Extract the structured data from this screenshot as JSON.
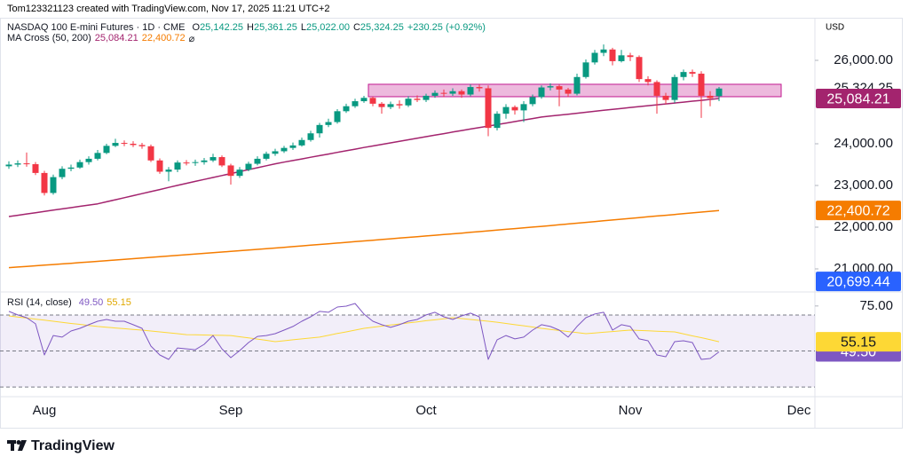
{
  "header": {
    "attribution": "Tom123321123 created with TradingView.com, Nov 17, 2025 11:21 UTC+2"
  },
  "chart_data": [
    {
      "type": "candlestick",
      "title": "NASDAQ 100 E-mini Futures · 1D · CME",
      "ohlc": [
        {
          "key": "O",
          "text": "25,142.25"
        },
        {
          "key": "H",
          "text": "25,361.25"
        },
        {
          "key": "L",
          "text": "25,022.00"
        },
        {
          "key": "C",
          "text": "25,324.25"
        }
      ],
      "change": "+230.25 (+0.92%)",
      "currency": "USD",
      "categories": [
        null,
        null,
        null,
        null,
        "Aug",
        null,
        null,
        null,
        null,
        null,
        null,
        null,
        null,
        null,
        null,
        null,
        null,
        null,
        null,
        null,
        null,
        null,
        null,
        null,
        null,
        "Sep",
        null,
        null,
        null,
        null,
        null,
        null,
        null,
        null,
        null,
        null,
        null,
        null,
        null,
        null,
        null,
        null,
        null,
        null,
        null,
        null,
        null,
        "Oct",
        null,
        null,
        null,
        null,
        null,
        null,
        null,
        null,
        null,
        null,
        null,
        null,
        null,
        null,
        null,
        null,
        null,
        null,
        null,
        null,
        null,
        null,
        "Nov",
        null,
        null,
        null,
        null,
        null,
        null,
        null,
        null,
        null,
        null,
        null,
        null,
        null,
        null,
        null,
        null,
        null,
        null,
        "Dec"
      ],
      "open": [
        23460,
        23500,
        23530,
        23510,
        23300,
        22820,
        23200,
        23400,
        23430,
        23560,
        23640,
        23780,
        23950,
        24020,
        24000,
        23970,
        23940,
        23600,
        23330,
        23380,
        23550,
        23540,
        23560,
        23600,
        23680,
        23480,
        23230,
        23380,
        23520,
        23640,
        23760,
        23820,
        23900,
        23960,
        24090,
        24250,
        24450,
        24520,
        24780,
        24900,
        25020,
        25100,
        24960,
        24880,
        24950,
        24920,
        25080,
        25050,
        25150,
        25220,
        25200,
        25260,
        25180,
        25360,
        25330,
        24380,
        24720,
        24880,
        24800,
        24950,
        25120,
        25350,
        25380,
        25300,
        25200,
        25600,
        25950,
        26180,
        26260,
        25980,
        26120,
        26080,
        25550,
        25480,
        25150,
        25050,
        25600,
        25720,
        25680,
        25150,
        25142.25,
        null,
        null,
        null,
        null,
        null,
        null,
        null,
        null,
        null
      ],
      "high": [
        23580,
        23600,
        23790,
        23560,
        23350,
        23260,
        23460,
        23500,
        23620,
        23700,
        23850,
        24000,
        24120,
        24080,
        24060,
        24020,
        23980,
        23650,
        23440,
        23600,
        23610,
        23620,
        23660,
        23760,
        23720,
        23520,
        23440,
        23570,
        23700,
        23810,
        23880,
        23950,
        24030,
        24150,
        24310,
        24500,
        24600,
        24830,
        24960,
        25080,
        25150,
        25130,
        25000,
        25010,
        25040,
        25140,
        25160,
        25200,
        25280,
        25300,
        25330,
        25300,
        25420,
        25420,
        25400,
        24780,
        24950,
        24920,
        25020,
        25180,
        25400,
        25450,
        25420,
        25340,
        25680,
        26020,
        26250,
        26380,
        26300,
        26250,
        26180,
        26120,
        25620,
        25520,
        25220,
        25660,
        25780,
        25780,
        25740,
        25260,
        25361.25,
        null,
        null,
        null,
        null,
        null,
        null,
        null,
        null,
        null
      ],
      "low": [
        23400,
        23440,
        23450,
        23250,
        22760,
        22780,
        23150,
        23340,
        23400,
        23500,
        23600,
        23750,
        23920,
        23940,
        23920,
        23880,
        23560,
        23280,
        23100,
        23320,
        23480,
        23470,
        23500,
        23560,
        23440,
        23020,
        23180,
        23340,
        23480,
        23600,
        23710,
        23780,
        23850,
        23930,
        24050,
        24150,
        24400,
        24480,
        24740,
        24860,
        24980,
        24900,
        24720,
        24830,
        24840,
        24880,
        25000,
        25000,
        25100,
        25120,
        25150,
        25100,
        25140,
        25250,
        24180,
        24320,
        24600,
        24700,
        24520,
        24900,
        25080,
        25280,
        24900,
        25120,
        25160,
        25560,
        25900,
        26100,
        25880,
        25950,
        25980,
        25480,
        25400,
        24720,
        24950,
        24980,
        25520,
        25600,
        24620,
        24900,
        25022,
        null,
        null,
        null,
        null,
        null,
        null,
        null,
        null,
        null
      ],
      "close": [
        23500,
        23530,
        23510,
        23300,
        22820,
        23200,
        23400,
        23430,
        23560,
        23640,
        23780,
        23950,
        24020,
        24000,
        23970,
        23940,
        23600,
        23330,
        23380,
        23550,
        23540,
        23560,
        23600,
        23680,
        23480,
        23230,
        23380,
        23520,
        23640,
        23760,
        23820,
        23900,
        23960,
        24090,
        24250,
        24450,
        24520,
        24780,
        24900,
        25020,
        25100,
        24960,
        24880,
        24950,
        24920,
        25080,
        25050,
        25150,
        25220,
        25200,
        25260,
        25180,
        25360,
        25330,
        24380,
        24720,
        24880,
        24800,
        24950,
        25120,
        25350,
        25380,
        25300,
        25200,
        25600,
        25950,
        26180,
        26260,
        25980,
        26120,
        26080,
        25550,
        25480,
        25150,
        25050,
        25600,
        25720,
        25680,
        25150,
        25094,
        25324.25,
        null,
        null,
        null,
        null,
        null,
        null,
        null,
        null,
        null
      ],
      "up_color": "#089981",
      "down_color": "#f23645",
      "overlay": {
        "name": "MA Cross (50, 200)",
        "series": [
          {
            "color": "#a3246e",
            "value_label": "25,084.21",
            "values": [
              22255,
              22286,
              22316,
              22347,
              22377,
              22408,
              22438,
              22469,
              22499,
              22530,
              22560,
              22609,
              22658,
              22707,
              22756,
              22805,
              22854,
              22903,
              22952,
              23001,
              23050,
              23097,
              23144,
              23191,
              23238,
              23285,
              23332,
              23379,
              23426,
              23473,
              23520,
              23559,
              23598,
              23637,
              23676,
              23715,
              23754,
              23793,
              23832,
              23871,
              23910,
              23947,
              23984,
              24021,
              24058,
              24095,
              24132,
              24169,
              24206,
              24243,
              24280,
              24316,
              24352,
              24388,
              24424,
              24460,
              24496,
              24532,
              24568,
              24604,
              24640,
              24663,
              24686,
              24709,
              24732,
              24755,
              24778,
              24801,
              24824,
              24847,
              24870,
              24891,
              24913,
              24934,
              24956,
              24977,
              24998,
              25020,
              25041,
              25063,
              25084.21,
              null,
              null,
              null,
              null,
              null,
              null,
              null,
              null,
              null
            ]
          },
          {
            "color": "#f57c00",
            "value_label": "22,400.72",
            "values": [
              21030,
              21045,
              21060,
              21075,
              21090,
              21105,
              21120,
              21135,
              21150,
              21165,
              21180,
              21196,
              21212,
              21228,
              21244,
              21260,
              21276,
              21292,
              21308,
              21324,
              21340,
              21356,
              21372,
              21388,
              21404,
              21420,
              21436,
              21452,
              21468,
              21484,
              21500,
              21517,
              21534,
              21551,
              21568,
              21585,
              21602,
              21619,
              21636,
              21653,
              21670,
              21687,
              21704,
              21721,
              21738,
              21755,
              21772,
              21789,
              21806,
              21823,
              21840,
              21858,
              21876,
              21894,
              21912,
              21930,
              21948,
              21966,
              21984,
              22002,
              22020,
              22039,
              22058,
              22077,
              22096,
              22115,
              22134,
              22153,
              22172,
              22191,
              22210,
              22229,
              22248,
              22267,
              22286,
              22305,
              22324,
              22343,
              22362,
              22381,
              22400.72,
              null,
              null,
              null,
              null,
              null,
              null,
              null,
              null,
              null
            ]
          }
        ]
      },
      "zone": {
        "ylim": [
          25128,
          25426
        ],
        "xlim": [
          40.5,
          87
        ],
        "color": "#c2188f"
      },
      "marker_labels": [
        {
          "value": 20699.44,
          "label": "20,699.44",
          "color": "#2962ff"
        }
      ],
      "ylim": [
        20468,
        27021
      ],
      "yticks": [
        {
          "value": 21000,
          "label": "21,000.00"
        },
        {
          "value": 22000,
          "label": "22,000.00"
        },
        {
          "value": 23000,
          "label": "23,000.00"
        },
        {
          "value": 24000,
          "label": "24,000.00"
        },
        {
          "value": 26000,
          "label": "26,000.00"
        }
      ]
    },
    {
      "type": "rsi",
      "title": "RSI (14, close)",
      "series": [
        {
          "color": "#7e57c2",
          "value_label": "49.50",
          "values": [
            72.0,
            70.0,
            68.5,
            65.1,
            47.8,
            58.6,
            57.7,
            61.1,
            62.6,
            64.6,
            66.5,
            67.5,
            66.5,
            66.5,
            64.6,
            62.6,
            52.7,
            47.8,
            45.3,
            51.7,
            51.2,
            50.7,
            53.7,
            58.6,
            51.2,
            46.3,
            50.2,
            54.7,
            58.1,
            58.6,
            59.6,
            61.6,
            63.6,
            66.5,
            69.0,
            72.0,
            71.5,
            74.4,
            74.9,
            76.4,
            70.5,
            66.5,
            64.6,
            63.1,
            64.6,
            66.5,
            67.5,
            70.0,
            71.5,
            69.0,
            67.5,
            69.5,
            71.0,
            69.0,
            45.3,
            56.2,
            58.6,
            56.7,
            57.7,
            61.6,
            64.6,
            63.6,
            61.6,
            57.7,
            63.6,
            68.5,
            70.5,
            71.5,
            61.6,
            64.6,
            63.6,
            56.7,
            55.7,
            47.8,
            46.8,
            55.2,
            55.7,
            54.7,
            45.3,
            45.8,
            49.5,
            null,
            null,
            null,
            null,
            null,
            null,
            null,
            null,
            null
          ]
        },
        {
          "color": "#fdd835",
          "value_label": "55.15",
          "values": [
            69.5,
            68.9,
            68.3,
            67.7,
            67.1,
            66.5,
            65.9,
            65.3,
            64.8,
            64.2,
            63.6,
            63.2,
            62.8,
            62.4,
            62.0,
            61.6,
            61.1,
            60.6,
            60.1,
            59.6,
            59.1,
            59.0,
            58.9,
            58.8,
            58.7,
            58.6,
            57.9,
            57.3,
            56.6,
            55.9,
            55.2,
            55.7,
            56.2,
            56.7,
            57.2,
            57.7,
            58.7,
            59.7,
            60.6,
            61.6,
            62.6,
            63.2,
            63.8,
            64.4,
            65.0,
            65.6,
            66.2,
            66.8,
            67.3,
            67.9,
            68.5,
            68.0,
            67.5,
            67.0,
            66.5,
            66.0,
            65.3,
            64.6,
            64.0,
            63.3,
            62.6,
            62.0,
            61.4,
            60.8,
            60.2,
            59.6,
            60.0,
            60.4,
            60.8,
            61.2,
            61.6,
            61.4,
            61.2,
            61.0,
            60.8,
            60.6,
            59.5,
            58.4,
            57.4,
            56.3,
            55.15,
            null,
            null,
            null,
            null,
            null,
            null,
            null,
            null,
            null
          ]
        }
      ],
      "bands": [
        70,
        50,
        30
      ],
      "band_fill": "#7e57c2",
      "ylim": [
        25.6,
        82.3
      ],
      "yticks": [
        {
          "value": 75,
          "label": "75.00"
        }
      ]
    }
  ],
  "footer": {
    "brand": "TradingView"
  }
}
